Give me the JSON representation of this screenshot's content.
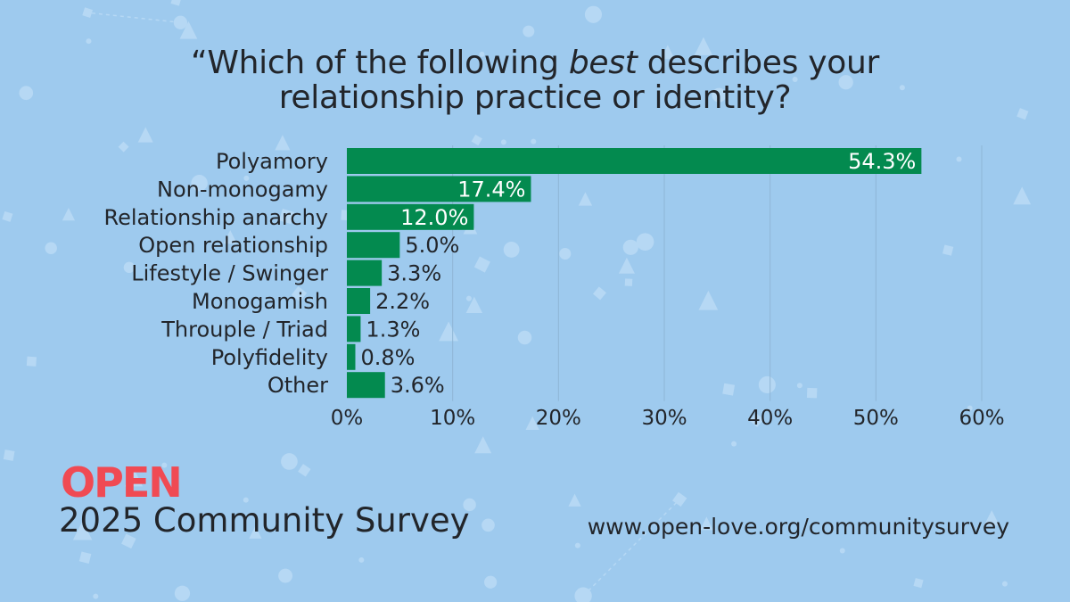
{
  "title": {
    "line1_prefix": "“Which of the following ",
    "line1_emph": "best",
    "line1_suffix": " describes your",
    "line2": "relationship practice or identity?"
  },
  "chart_data": {
    "type": "bar",
    "orientation": "horizontal",
    "title": "“Which of the following best describes your relationship practice or identity?",
    "categories": [
      "Polyamory",
      "Non-monogamy",
      "Relationship anarchy",
      "Open relationship",
      "Lifestyle / Swinger",
      "Monogamish",
      "Throuple / Triad",
      "Polyfidelity",
      "Other"
    ],
    "values": [
      54.3,
      17.4,
      12.0,
      5.0,
      3.3,
      2.2,
      1.3,
      0.8,
      3.6
    ],
    "value_labels": [
      "54.3%",
      "17.4%",
      "12.0%",
      "5.0%",
      "3.3%",
      "2.2%",
      "1.3%",
      "0.8%",
      "3.6%"
    ],
    "xlim": [
      0,
      60
    ],
    "xticks": [
      0,
      10,
      20,
      30,
      40,
      50,
      60
    ],
    "xtick_labels": [
      "0%",
      "10%",
      "20%",
      "30%",
      "40%",
      "50%",
      "60%"
    ],
    "xlabel": "",
    "ylabel": "",
    "grid": "vertical",
    "bar_color": "#038a4f",
    "grid_color": "#8fb6d6",
    "label_color": "#22252a"
  },
  "logo": {
    "text": "OPEN"
  },
  "footer": {
    "survey_title": "2025 Community Survey",
    "url": "www.open-love.org/communitysurvey"
  },
  "colors": {
    "background": "#9ecaee",
    "logo_primary": "#f04a53",
    "logo_accent": "#f7a236"
  }
}
